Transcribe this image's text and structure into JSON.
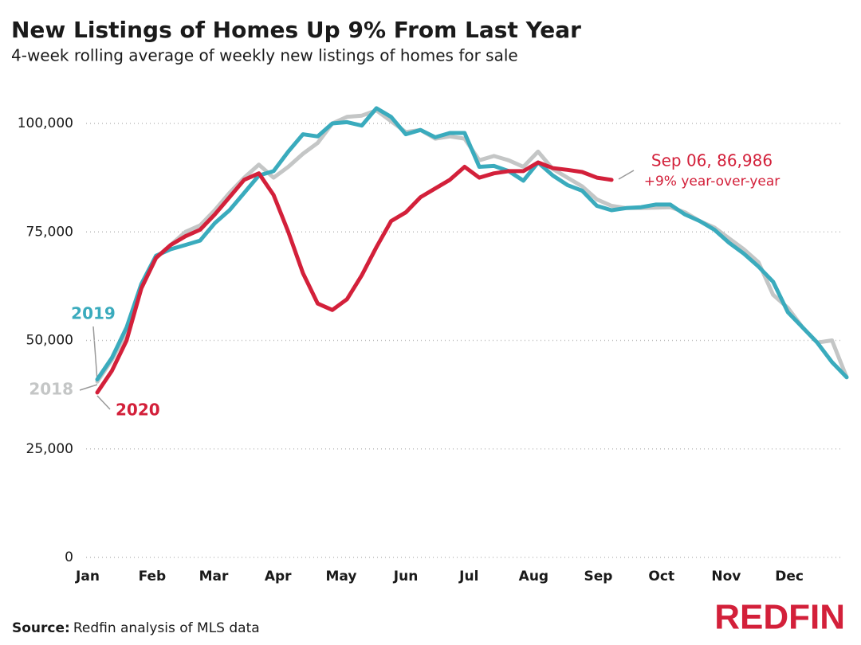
{
  "chart_data": {
    "type": "line",
    "title": "New Listings of Homes Up 9% From Last Year",
    "subtitle": "4-week rolling average of weekly new listings of homes for sale",
    "x": [
      1,
      2,
      3,
      4,
      5,
      6,
      7,
      8,
      9,
      10,
      11,
      12,
      13,
      14,
      15,
      16,
      17,
      18,
      19,
      20,
      21,
      22,
      23,
      24,
      25,
      26,
      27,
      28,
      29,
      30,
      31,
      32,
      33,
      34,
      35,
      36,
      37,
      38,
      39,
      40,
      41,
      42,
      43,
      44,
      45,
      46,
      47,
      48,
      49,
      50,
      51,
      52
    ],
    "xlim": [
      0.35,
      52
    ],
    "xticks": [
      {
        "value": 0.35,
        "label": "Jan"
      },
      {
        "value": 4.74,
        "label": "Feb"
      },
      {
        "value": 8.92,
        "label": "Mar"
      },
      {
        "value": 13.3,
        "label": "Apr"
      },
      {
        "value": 17.6,
        "label": "May"
      },
      {
        "value": 22.0,
        "label": "Jun"
      },
      {
        "value": 26.3,
        "label": "Jul"
      },
      {
        "value": 30.7,
        "label": "Aug"
      },
      {
        "value": 35.1,
        "label": "Sep"
      },
      {
        "value": 39.4,
        "label": "Oct"
      },
      {
        "value": 43.8,
        "label": "Nov"
      },
      {
        "value": 48.1,
        "label": "Dec"
      }
    ],
    "ylim": [
      0,
      104000
    ],
    "yticks": [
      0,
      {
        "value": 25000,
        "label": "25,000"
      },
      {
        "value": 50000,
        "label": "50,000"
      },
      {
        "value": 75000,
        "label": "75,000"
      },
      {
        "value": 100000,
        "label": "100,000"
      }
    ],
    "grid": true,
    "series": [
      {
        "name": "2018",
        "color": "#c4c6c6",
        "values": [
          40500,
          45500,
          52000,
          62000,
          69000,
          72000,
          75000,
          76500,
          80000,
          84000,
          87500,
          90500,
          87500,
          90000,
          93000,
          95500,
          100000,
          101500,
          101800,
          103000,
          100500,
          98000,
          98500,
          96500,
          97000,
          96500,
          91500,
          92500,
          91500,
          90000,
          93500,
          89500,
          87500,
          85500,
          82500,
          81000,
          80500,
          80500,
          80600,
          80700,
          79500,
          77500,
          76000,
          73500,
          71000,
          68000,
          60500,
          57500,
          53000,
          49500,
          50000,
          41500
        ]
      },
      {
        "name": "2019",
        "color": "#3aabbd",
        "values": [
          41000,
          46000,
          53000,
          63000,
          69500,
          71000,
          72000,
          73000,
          77000,
          80000,
          84000,
          88000,
          89000,
          93500,
          97500,
          97000,
          100000,
          100300,
          99500,
          103500,
          101500,
          97500,
          98500,
          96800,
          97800,
          97800,
          90000,
          90200,
          89000,
          86800,
          91000,
          88000,
          85800,
          84500,
          81000,
          80000,
          80500,
          80700,
          81300,
          81300,
          79000,
          77500,
          75500,
          72500,
          70000,
          67000,
          63500,
          56500,
          53000,
          49500,
          45000,
          41500
        ]
      },
      {
        "name": "2020",
        "color": "#d3203a",
        "values": [
          38000,
          43000,
          50000,
          62000,
          69000,
          72000,
          74000,
          75500,
          79000,
          83000,
          87000,
          88500,
          83500,
          75000,
          65500,
          58500,
          57000,
          59500,
          65000,
          71500,
          77500,
          79500,
          83000,
          85000,
          87000,
          90000,
          87500,
          88500,
          89000,
          89000,
          91000,
          89700,
          89300,
          88800,
          87500,
          86986,
          null,
          null,
          null,
          null,
          null,
          null,
          null,
          null,
          null,
          null,
          null,
          null,
          null,
          null,
          null,
          null
        ]
      }
    ],
    "annotations": [
      "Sep 06, 86,986",
      "+9% year-over-year"
    ],
    "source_label": "Source:",
    "source": "Redfin analysis of MLS data",
    "logo": "REDFIN"
  }
}
